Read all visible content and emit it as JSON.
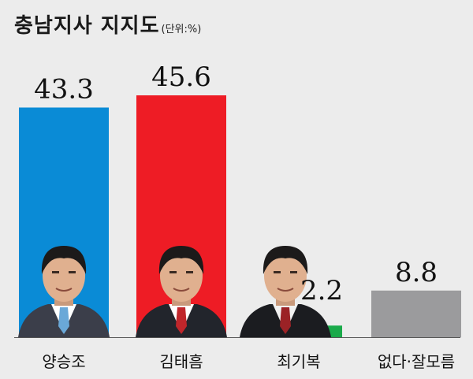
{
  "chart_data": {
    "type": "bar",
    "title": "충남지사 지지도",
    "unit_note": "(단위:%)",
    "categories": [
      "양승조",
      "김태흠",
      "최기복",
      "없다·잘모름"
    ],
    "values": [
      43.3,
      45.6,
      2.2,
      8.8
    ],
    "value_labels": [
      "43.3",
      "45.6",
      "2.2",
      "8.8"
    ],
    "colors": [
      "#0a8bd6",
      "#ee1c25",
      "#1aaa4a",
      "#9b9b9d"
    ],
    "ylim": [
      0,
      45.6
    ],
    "portraits": [
      {
        "name": "yang-seungjo-photo",
        "tie": "#6aa8d8",
        "shirt": "#ffffff",
        "suit": "#3b3e4a"
      },
      {
        "name": "kim-taeheum-photo",
        "tie": "#c0262b",
        "shirt": "#ffffff",
        "suit": "#22252c"
      },
      {
        "name": "choi-kibok-photo",
        "tie": "#9b2226",
        "shirt": "#f1f1f1",
        "suit": "#1b1c20"
      }
    ]
  }
}
